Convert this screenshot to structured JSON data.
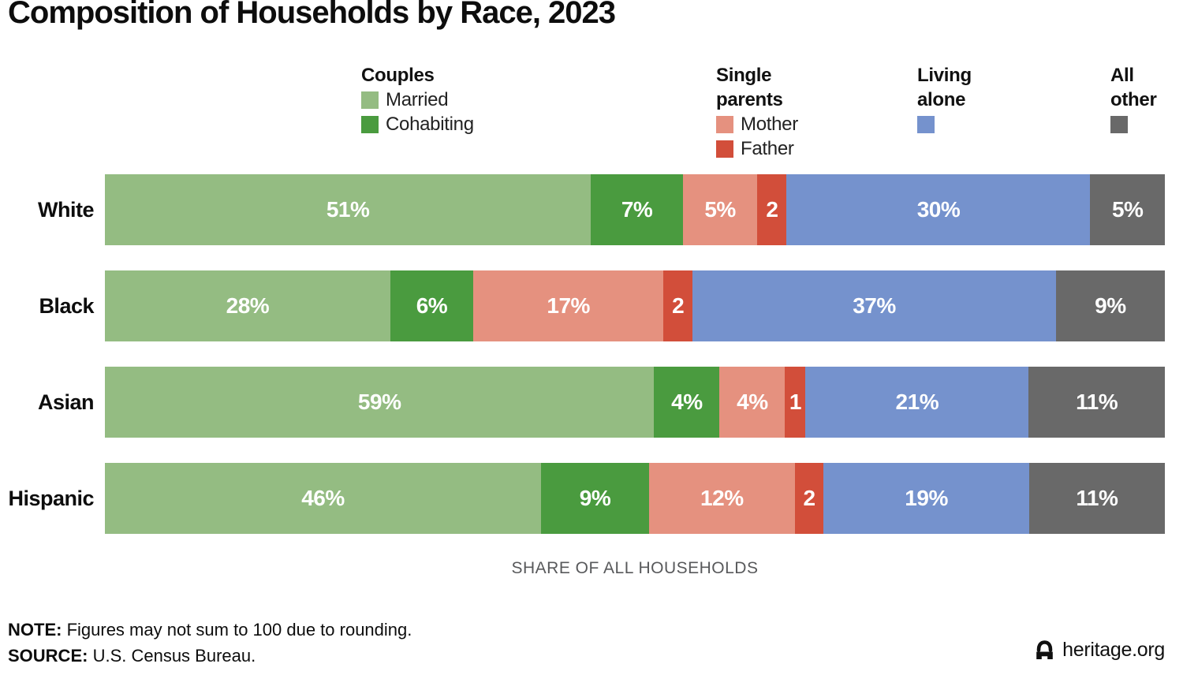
{
  "title": "Composition of Households by Race, 2023",
  "colors": {
    "married": "#94BC82",
    "cohabiting": "#4A9B3F",
    "mother": "#E5917F",
    "father": "#D24E3A",
    "living_alone": "#7592CD",
    "all_other": "#696969",
    "axis_label_text": "#58595b"
  },
  "legend": {
    "groups": [
      {
        "header": "Couples",
        "items": [
          {
            "label": "Married",
            "color": "#94BC82",
            "name": "married"
          },
          {
            "label": "Cohabiting",
            "color": "#4A9B3F",
            "name": "cohabiting"
          }
        ]
      },
      {
        "header": "Single parents",
        "items": [
          {
            "label": "Mother",
            "color": "#E5917F",
            "name": "mother"
          },
          {
            "label": "Father",
            "color": "#D24E3A",
            "name": "father"
          }
        ]
      },
      {
        "header": "Living alone",
        "items": [
          {
            "label": "",
            "color": "#7592CD",
            "name": "living-alone"
          }
        ]
      },
      {
        "header": "All other",
        "items": [
          {
            "label": "",
            "color": "#696969",
            "name": "all-other"
          }
        ]
      }
    ]
  },
  "chart_data": {
    "type": "bar",
    "orientation": "horizontal",
    "stacked": true,
    "title": "Composition of Households by Race, 2023",
    "categories": [
      "White",
      "Black",
      "Asian",
      "Hispanic"
    ],
    "series": [
      {
        "name": "Married",
        "color": "#94BC82",
        "values": [
          51,
          28,
          59,
          46
        ],
        "labels": [
          "51%",
          "28%",
          "59%",
          "46%"
        ]
      },
      {
        "name": "Cohabiting",
        "color": "#4A9B3F",
        "values": [
          7,
          6,
          4,
          9
        ],
        "labels": [
          "7%",
          "6%",
          "4%",
          "9%"
        ]
      },
      {
        "name": "Mother",
        "color": "#E5917F",
        "values": [
          5,
          17,
          4,
          12
        ],
        "labels": [
          "5%",
          "17%",
          "4%",
          "12%"
        ]
      },
      {
        "name": "Father",
        "color": "#D24E3A",
        "values": [
          2,
          2,
          1,
          2
        ],
        "labels": [
          "2",
          "2",
          "1",
          "2"
        ]
      },
      {
        "name": "Living alone",
        "color": "#7592CD",
        "values": [
          30,
          37,
          21,
          19
        ],
        "labels": [
          "30%",
          "37%",
          "21%",
          "19%"
        ]
      },
      {
        "name": "All other",
        "color": "#696969",
        "values": [
          5,
          9,
          11,
          11
        ],
        "labels": [
          "5%",
          "9%",
          "11%",
          "11%"
        ]
      }
    ],
    "xlabel": "SHARE OF ALL HOUSEHOLDS",
    "xlim": [
      0,
      100
    ],
    "grid": false,
    "legend_position": "top"
  },
  "footer": {
    "note_label": "NOTE:",
    "note_text": " Figures may not sum to 100 due to rounding.",
    "source_label": "SOURCE:",
    "source_text": " U.S. Census Bureau.",
    "brand": "heritage.org"
  }
}
